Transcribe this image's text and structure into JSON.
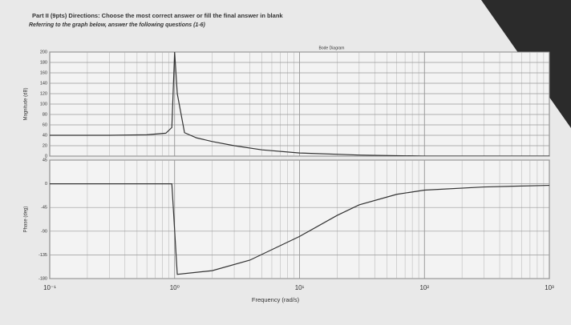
{
  "header": {
    "line1": "Part II (9pts)  Directions: Choose the most correct answer or fill the final answer in blank",
    "line2": "Referring to the graph below, answer the following questions (1-6)"
  },
  "chart_data": [
    {
      "type": "line",
      "title": "Bode Diagram",
      "ylabel": "Magnitude (dB)",
      "log_x": true,
      "grid": true,
      "color": "#333333",
      "x": [
        0.1,
        0.3,
        0.6,
        0.85,
        0.95,
        1,
        1.05,
        1.2,
        1.5,
        2,
        3,
        5,
        10,
        30,
        100,
        1000
      ],
      "values": [
        40,
        40,
        41,
        44,
        55,
        200,
        120,
        45,
        35,
        28,
        20,
        12,
        6,
        2,
        0,
        0
      ],
      "xlim": [
        0.1,
        1000
      ],
      "xticks": [
        0.1,
        1,
        10,
        100,
        1000
      ],
      "ylim": [
        0,
        200
      ],
      "yticks": [
        0,
        20,
        40,
        60,
        80,
        100,
        120,
        140,
        160,
        180,
        200
      ]
    },
    {
      "type": "line",
      "ylabel": "Phase (deg)",
      "xlabel": "Frequency (rad/s)",
      "log_x": true,
      "grid": true,
      "color": "#333333",
      "x": [
        0.1,
        0.5,
        0.95,
        1.05,
        2,
        4,
        10,
        20,
        30,
        60,
        100,
        300,
        1000
      ],
      "values": [
        0,
        0,
        0,
        -172,
        -165,
        -145,
        -100,
        -60,
        -40,
        -20,
        -12,
        -6,
        -3
      ],
      "xlim": [
        0.1,
        1000
      ],
      "xticks": [
        {
          "value": 0.1,
          "label": "10⁻¹"
        },
        {
          "value": 1,
          "label": "10⁰"
        },
        {
          "value": 10,
          "label": "10¹"
        },
        {
          "value": 100,
          "label": "10²"
        },
        {
          "value": 1000,
          "label": "10³"
        }
      ],
      "ylim": [
        -180,
        45
      ],
      "yticks": [
        -180,
        -135,
        -90,
        -45,
        0,
        45
      ]
    }
  ]
}
